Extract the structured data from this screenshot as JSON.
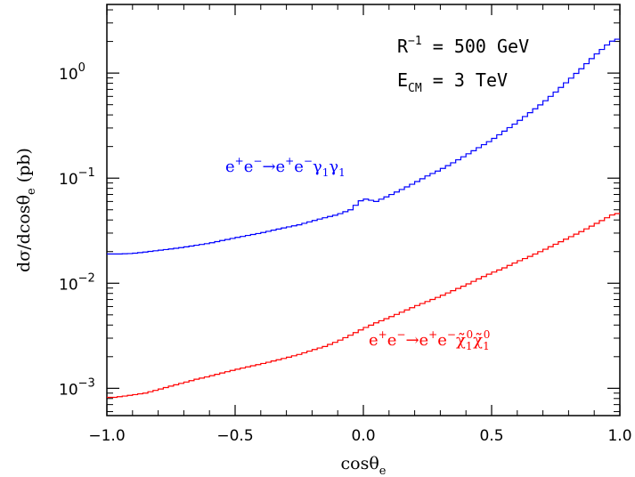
{
  "chart_data": {
    "type": "line",
    "subtype": "histogram-step",
    "y_scale": "log",
    "xlabel": "cosθ",
    "xlabel_sub": "e",
    "ylabel": "dσ/dcosθ",
    "ylabel_sub": "e",
    "ylabel_unit": " (pb)",
    "xlim": [
      -1.0,
      1.0
    ],
    "ylim": [
      0.00055,
      4.5
    ],
    "x_ticks": [
      {
        "value": -1.0,
        "label": "−1.0"
      },
      {
        "value": -0.5,
        "label": "−0.5"
      },
      {
        "value": 0.0,
        "label": "0.0"
      },
      {
        "value": 0.5,
        "label": "0.5"
      },
      {
        "value": 1.0,
        "label": "1.0"
      }
    ],
    "y_ticks": [
      {
        "value": 0.001,
        "base": "10",
        "exp": "−3"
      },
      {
        "value": 0.01,
        "base": "10",
        "exp": "−2"
      },
      {
        "value": 0.1,
        "base": "10",
        "exp": "−1"
      },
      {
        "value": 1,
        "base": "10",
        "exp": "0"
      }
    ],
    "annotations": [
      {
        "base": "R",
        "sup": "−1",
        "rest": " = 500 GeV"
      },
      {
        "base": "E",
        "sub": "CM",
        "rest": " = 3 TeV"
      }
    ],
    "grid": false,
    "legend": "none",
    "series": [
      {
        "key": "photon",
        "color": "#0000ff",
        "label_parts": [
          {
            "t": "e"
          },
          {
            "sup": "+"
          },
          {
            "t": "e"
          },
          {
            "sup": "−"
          },
          {
            "t": "→e"
          },
          {
            "sup": "+"
          },
          {
            "t": "e"
          },
          {
            "sup": "−"
          },
          {
            "t": "γ"
          },
          {
            "sub": "1"
          },
          {
            "t": "γ"
          },
          {
            "sub": "1"
          }
        ],
        "x": [
          -0.95,
          -0.9,
          -0.85,
          -0.8,
          -0.75,
          -0.7,
          -0.65,
          -0.6,
          -0.55,
          -0.5,
          -0.45,
          -0.4,
          -0.35,
          -0.3,
          -0.25,
          -0.2,
          -0.15,
          -0.1,
          -0.05,
          0.0,
          0.05,
          0.1,
          0.15,
          0.2,
          0.25,
          0.3,
          0.35,
          0.4,
          0.45,
          0.5,
          0.55,
          0.6,
          0.65,
          0.7,
          0.75,
          0.8,
          0.85,
          0.9,
          0.95,
          0.98
        ],
        "y": [
          0.019,
          0.0192,
          0.0198,
          0.0205,
          0.0212,
          0.022,
          0.023,
          0.024,
          0.0255,
          0.027,
          0.0285,
          0.03,
          0.032,
          0.034,
          0.036,
          0.039,
          0.042,
          0.045,
          0.05,
          0.064,
          0.06,
          0.068,
          0.078,
          0.09,
          0.105,
          0.12,
          0.14,
          0.165,
          0.195,
          0.23,
          0.28,
          0.34,
          0.42,
          0.52,
          0.66,
          0.85,
          1.1,
          1.45,
          1.85,
          2.1
        ]
      },
      {
        "key": "neutralino",
        "color": "#ff0000",
        "label_parts": [
          {
            "t": "e"
          },
          {
            "sup": "+"
          },
          {
            "t": "e"
          },
          {
            "sup": "−"
          },
          {
            "t": "→e"
          },
          {
            "sup": "+"
          },
          {
            "t": "e"
          },
          {
            "sup": "−"
          },
          {
            "t": "χ̃"
          },
          {
            "subsup": [
              "1",
              "0"
            ]
          },
          {
            "t": "χ̃"
          },
          {
            "subsup": [
              "1",
              "0"
            ]
          }
        ],
        "x": [
          -0.97,
          -0.92,
          -0.85,
          -0.8,
          -0.75,
          -0.7,
          -0.65,
          -0.6,
          -0.55,
          -0.5,
          -0.45,
          -0.4,
          -0.35,
          -0.3,
          -0.25,
          -0.2,
          -0.15,
          -0.1,
          -0.05,
          0.0,
          0.05,
          0.1,
          0.15,
          0.2,
          0.25,
          0.3,
          0.35,
          0.4,
          0.45,
          0.5,
          0.55,
          0.6,
          0.65,
          0.7,
          0.75,
          0.8,
          0.85,
          0.9,
          0.95,
          0.98
        ],
        "y": [
          0.00082,
          0.00085,
          0.0009,
          0.00097,
          0.00105,
          0.00113,
          0.00122,
          0.0013,
          0.0014,
          0.0015,
          0.0016,
          0.0017,
          0.00182,
          0.00195,
          0.0021,
          0.0023,
          0.0025,
          0.0028,
          0.0032,
          0.0037,
          0.0042,
          0.0047,
          0.0053,
          0.006,
          0.0067,
          0.0075,
          0.0085,
          0.0096,
          0.011,
          0.0125,
          0.014,
          0.016,
          0.018,
          0.0205,
          0.0235,
          0.027,
          0.031,
          0.036,
          0.042,
          0.046
        ]
      }
    ]
  }
}
